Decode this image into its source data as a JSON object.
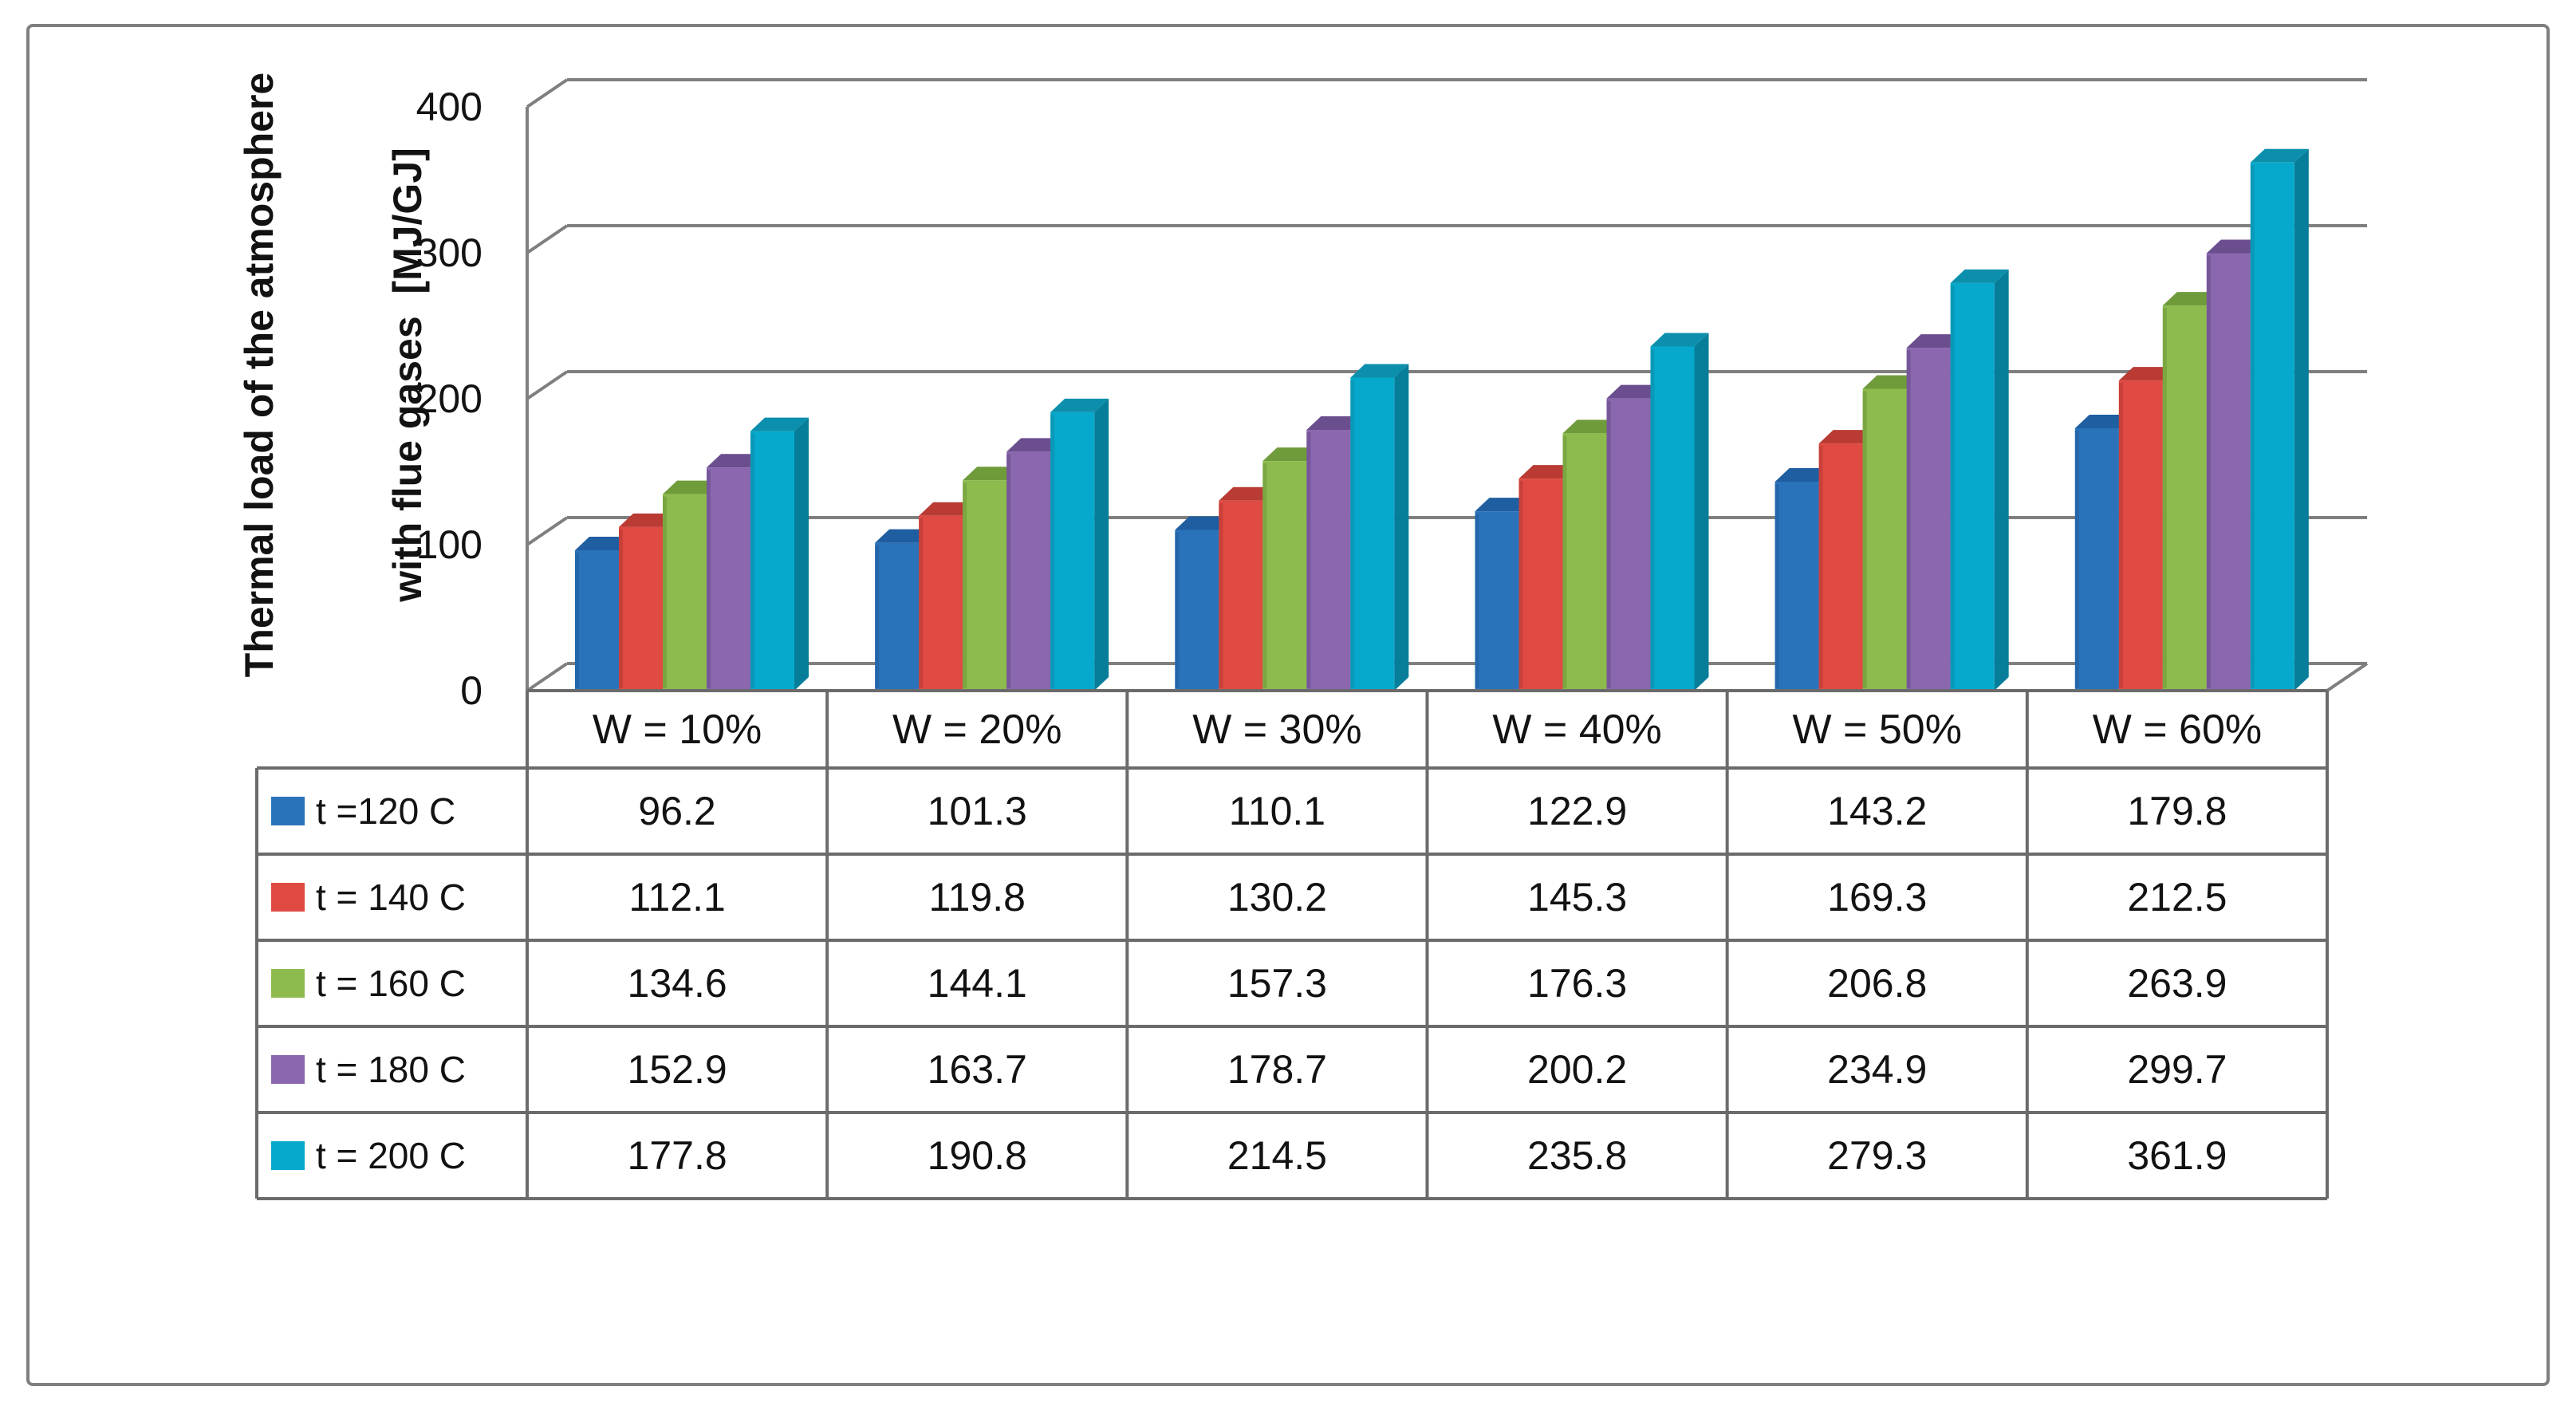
{
  "chart_data": {
    "type": "bar",
    "subtype": "3d-clustered-column",
    "title": "",
    "y_axis": {
      "label_line1": "Thermal load of the atmosphere",
      "label_line2": "with flue gases  [MJ/GJ]",
      "min": 0,
      "max": 400,
      "tick_step": 100,
      "ticks": [
        "400",
        "300",
        "200",
        "100",
        "0"
      ]
    },
    "categories": [
      "W = 10%",
      "W = 20%",
      "W = 30%",
      "W = 40%",
      "W = 50%",
      "W = 60%"
    ],
    "series": [
      {
        "name": "t =120 C",
        "color": "#2A73BA",
        "color_top": "#1F5EA1",
        "color_side": "#1A4E86",
        "values": [
          96.2,
          101.3,
          110.1,
          122.9,
          143.2,
          179.8
        ]
      },
      {
        "name": "t = 140 C",
        "color": "#DF4A42",
        "color_top": "#B93B34",
        "color_side": "#9E332D",
        "values": [
          112.1,
          119.8,
          130.2,
          145.3,
          169.3,
          212.5
        ]
      },
      {
        "name": "t = 160 C",
        "color": "#8DBB4D",
        "color_top": "#6F9B3B",
        "color_side": "#5F8634",
        "values": [
          134.6,
          144.1,
          157.3,
          176.3,
          206.8,
          263.9
        ]
      },
      {
        "name": "t = 180 C",
        "color": "#8A67AE",
        "color_top": "#6B4E8E",
        "color_side": "#5C4379",
        "values": [
          152.9,
          163.7,
          178.7,
          200.2,
          234.9,
          299.7
        ]
      },
      {
        "name": "t = 200 C",
        "color": "#06A9CB",
        "color_top": "#0C8FAC",
        "color_side": "#077E99",
        "values": [
          177.8,
          190.8,
          214.5,
          235.8,
          279.3,
          361.9
        ]
      }
    ],
    "gridlines": true,
    "legend_position": "left-of-data-table",
    "data_table_shown": true
  },
  "colors": {
    "chart_line": "#7F7F7F",
    "table_border": "#6B6B6B",
    "figure_border": "#7F7F7F",
    "text": "#121212",
    "background": "#FFFFFF"
  }
}
